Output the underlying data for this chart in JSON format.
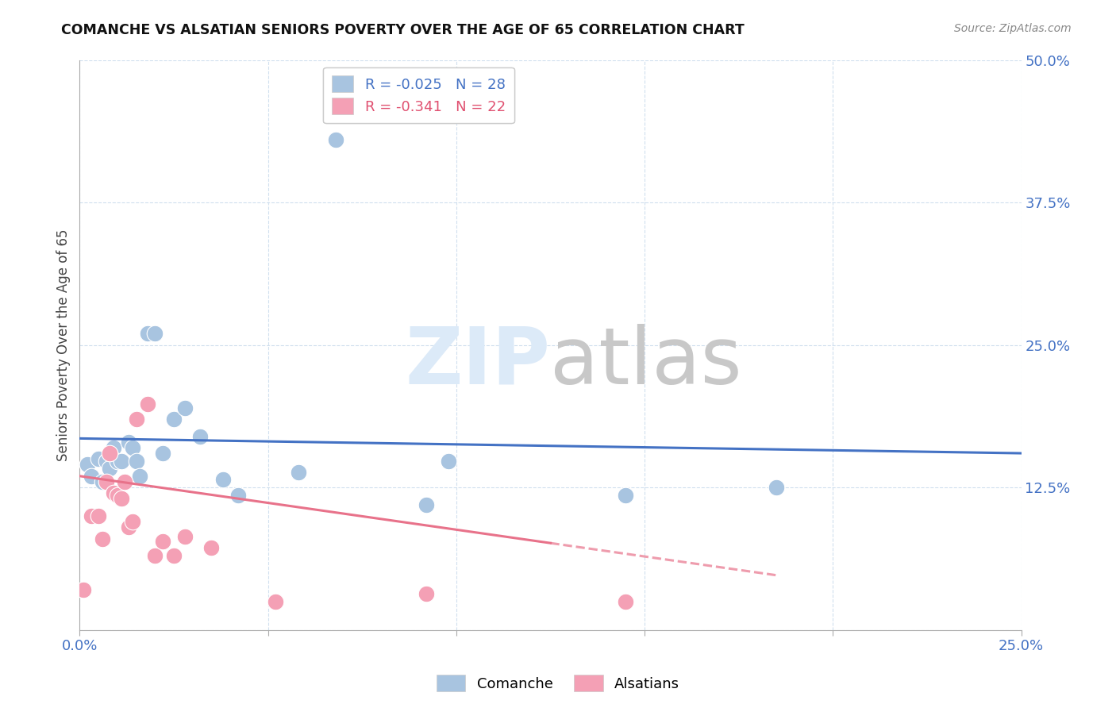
{
  "title": "COMANCHE VS ALSATIAN SENIORS POVERTY OVER THE AGE OF 65 CORRELATION CHART",
  "source": "Source: ZipAtlas.com",
  "ylabel": "Seniors Poverty Over the Age of 65",
  "xlim": [
    0.0,
    0.25
  ],
  "ylim": [
    0.0,
    0.5
  ],
  "xticks": [
    0.0,
    0.05,
    0.1,
    0.15,
    0.2,
    0.25
  ],
  "yticks": [
    0.0,
    0.125,
    0.25,
    0.375,
    0.5
  ],
  "ytick_labels": [
    "",
    "12.5%",
    "25.0%",
    "37.5%",
    "50.0%"
  ],
  "xtick_labels": [
    "0.0%",
    "",
    "",
    "",
    "",
    "25.0%"
  ],
  "comanche_R": "-0.025",
  "comanche_N": "28",
  "alsatian_R": "-0.341",
  "alsatian_N": "22",
  "comanche_color": "#a8c4e0",
  "alsatian_color": "#f4a0b5",
  "comanche_line_color": "#4472c4",
  "alsatian_line_color": "#e8728a",
  "watermark_color": "#dceaf8",
  "comanche_x": [
    0.002,
    0.003,
    0.005,
    0.006,
    0.007,
    0.008,
    0.009,
    0.01,
    0.011,
    0.013,
    0.014,
    0.015,
    0.016,
    0.018,
    0.02,
    0.022,
    0.025,
    0.028,
    0.032,
    0.038,
    0.042,
    0.058,
    0.068,
    0.082,
    0.092,
    0.098,
    0.145,
    0.185
  ],
  "comanche_y": [
    0.145,
    0.135,
    0.15,
    0.13,
    0.148,
    0.142,
    0.16,
    0.148,
    0.148,
    0.165,
    0.16,
    0.148,
    0.135,
    0.26,
    0.26,
    0.155,
    0.185,
    0.195,
    0.17,
    0.132,
    0.118,
    0.138,
    0.43,
    0.46,
    0.11,
    0.148,
    0.118,
    0.125
  ],
  "alsatian_x": [
    0.001,
    0.003,
    0.005,
    0.006,
    0.007,
    0.008,
    0.009,
    0.01,
    0.011,
    0.012,
    0.013,
    0.014,
    0.015,
    0.018,
    0.02,
    0.022,
    0.025,
    0.028,
    0.035,
    0.052,
    0.092,
    0.145
  ],
  "alsatian_y": [
    0.035,
    0.1,
    0.1,
    0.08,
    0.13,
    0.155,
    0.12,
    0.118,
    0.115,
    0.13,
    0.09,
    0.095,
    0.185,
    0.198,
    0.065,
    0.078,
    0.065,
    0.082,
    0.072,
    0.025,
    0.032,
    0.025
  ],
  "comanche_line_x": [
    0.0,
    0.25
  ],
  "comanche_line_y": [
    0.168,
    0.155
  ],
  "alsatian_line_x": [
    0.0,
    0.185
  ],
  "alsatian_line_y": [
    0.135,
    0.048
  ]
}
